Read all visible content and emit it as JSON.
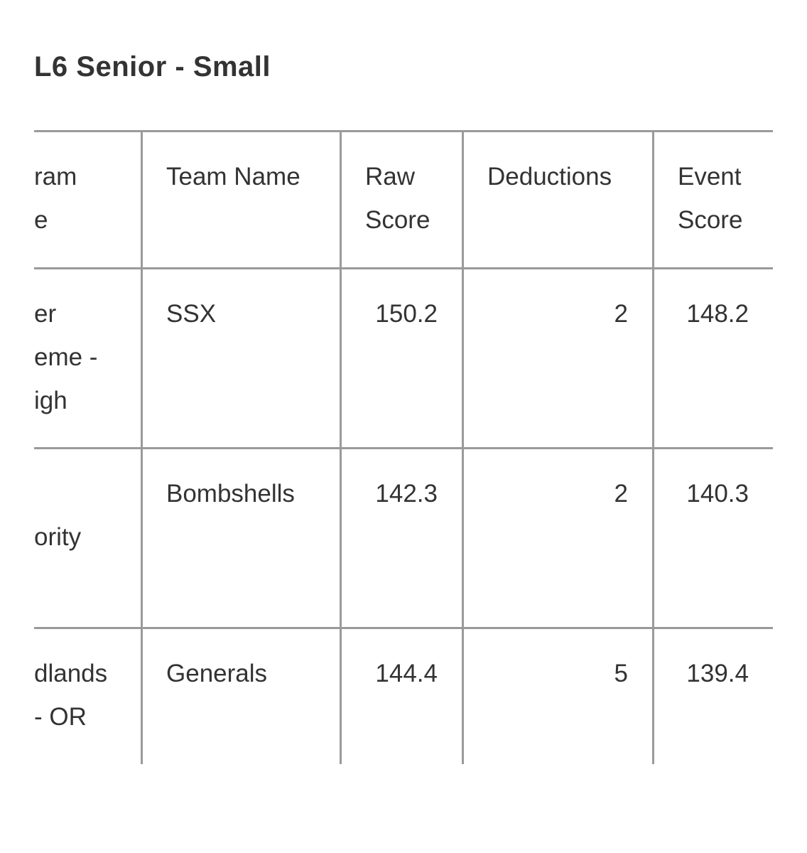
{
  "title": "L6 Senior - Small",
  "table": {
    "header": [
      [
        "ram",
        "e"
      ],
      "Team Name",
      "Raw Score",
      "Deductions",
      "Event Score"
    ],
    "rows": [
      [
        [
          "er",
          "eme -",
          "igh"
        ],
        "SSX",
        150.2,
        2,
        148.2
      ],
      [
        [
          "ority"
        ],
        "Bombshells",
        142.3,
        2,
        140.3
      ],
      [
        [
          "dlands",
          "- OR"
        ],
        "Generals",
        144.4,
        5,
        139.4
      ]
    ]
  }
}
